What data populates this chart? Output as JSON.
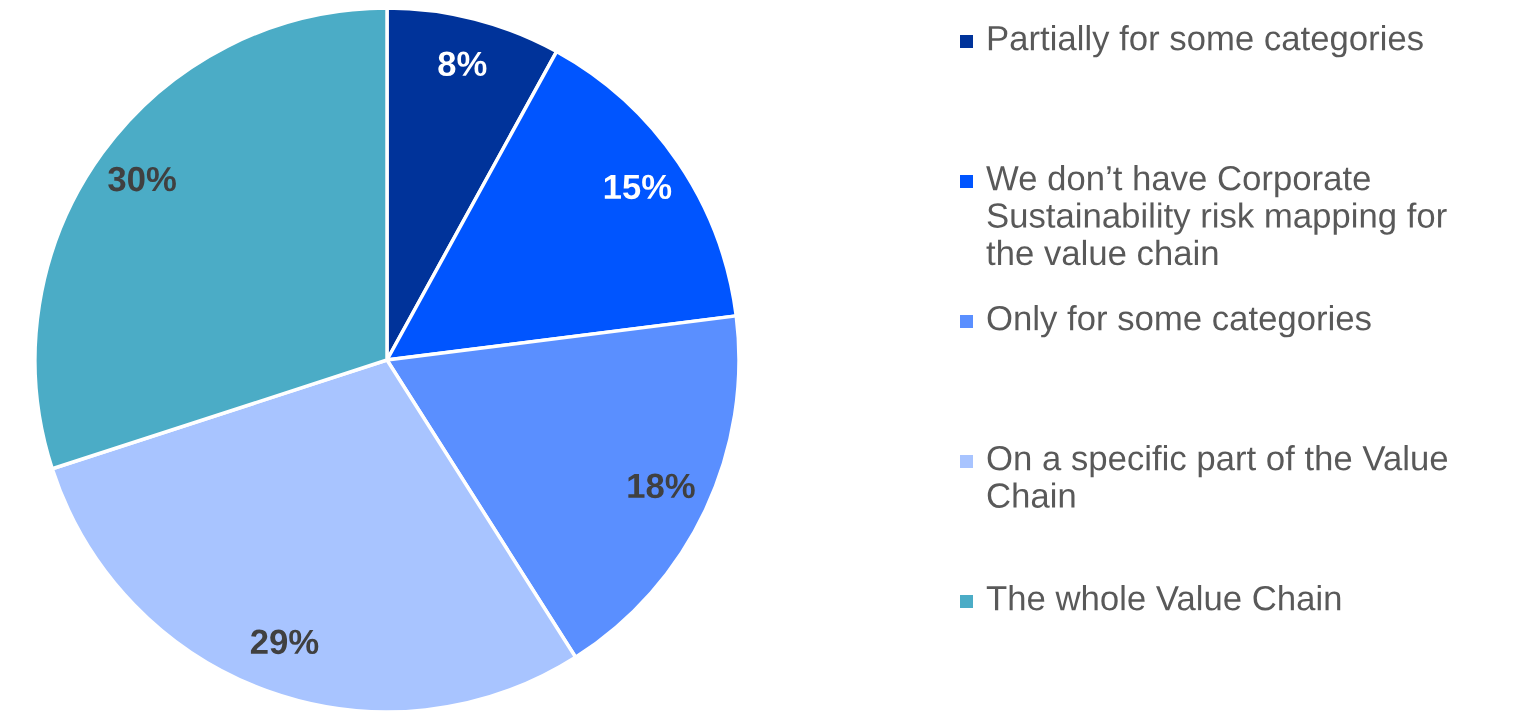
{
  "chart_data": {
    "type": "pie",
    "categories": [
      "Partially for some categories",
      "We don’t have Corporate Sustainability risk mapping for the value chain",
      "Only for some categories",
      "On a specific part of the Value Chain",
      "The whole Value Chain"
    ],
    "values": [
      8,
      15,
      18,
      29,
      30
    ],
    "colors": [
      "#00339a",
      "#0055ff",
      "#5a8fff",
      "#a8c4ff",
      "#4bacc6"
    ],
    "value_labels": [
      "8%",
      "15%",
      "18%",
      "29%",
      "30%"
    ],
    "legend": "right"
  }
}
